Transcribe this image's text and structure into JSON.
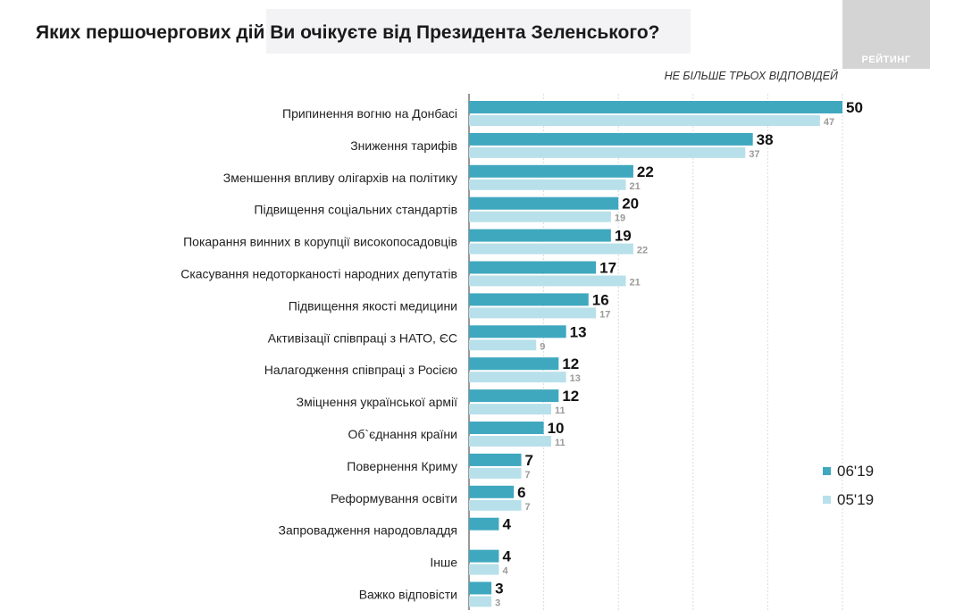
{
  "colors": {
    "series_current": "#3fa8bf",
    "series_previous": "#b8e0ea",
    "title_band": "#f3f3f5",
    "logo_bg": "#d4d4d4",
    "grid": "#dadada"
  },
  "logo": {
    "text": "РЕЙТИНГ"
  },
  "chart_data": {
    "type": "bar",
    "orientation": "horizontal",
    "title": "Яких першочергових дій Ви очікуєте від Президента Зеленського?",
    "subtitle": "НЕ БІЛЬШЕ ТРЬОХ ВІДПОВІДЕЙ",
    "categories": [
      "Припинення вогню на Донбасі",
      "Зниження тарифів",
      "Зменшення впливу олігархів на політику",
      "Підвищення соціальних стандартів",
      "Покарання винних в корупції високопосадовців",
      "Скасування недоторканості народних депутатів",
      "Підвищення якості медицини",
      "Активізації співпраці з НАТО, ЄС",
      "Налагодження співпраці з Росією",
      "Зміцнення української армії",
      "Об`єднання країни",
      "Повернення Криму",
      "Реформування освіти",
      "Запровадження народовладдя",
      "Інше",
      "Важко відповісти"
    ],
    "series": [
      {
        "name": "06'19",
        "values": [
          50,
          38,
          22,
          20,
          19,
          17,
          16,
          13,
          12,
          12,
          10,
          7,
          6,
          4,
          4,
          3
        ]
      },
      {
        "name": "05'19",
        "values": [
          47,
          37,
          21,
          19,
          22,
          21,
          17,
          9,
          13,
          11,
          11,
          7,
          7,
          null,
          4,
          3
        ]
      }
    ],
    "xlim": [
      0,
      50
    ],
    "grid": true,
    "legend_position": "right"
  }
}
